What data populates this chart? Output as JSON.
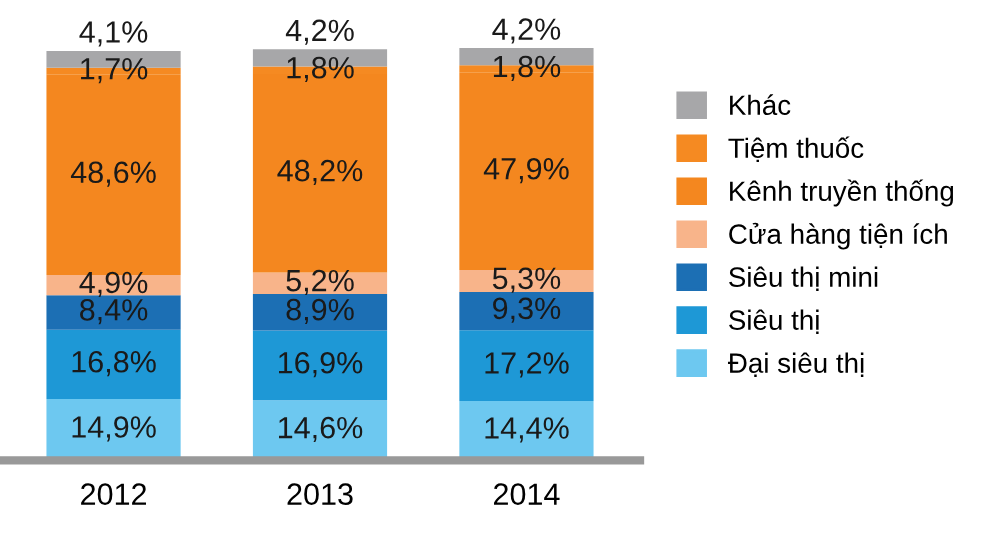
{
  "chart_data": {
    "type": "bar",
    "stacked": true,
    "categories": [
      "2012",
      "2013",
      "2014"
    ],
    "legend": "right",
    "grid": false,
    "series": [
      {
        "name": "Đại siêu thị",
        "color": "#6dc8f0",
        "values": [
          14.9,
          14.6,
          14.4
        ],
        "value_labels": [
          "14,9%",
          "14,6%",
          "14,4%"
        ]
      },
      {
        "name": "Siêu thị",
        "color": "#1e98d6",
        "values": [
          16.8,
          16.9,
          17.2
        ],
        "value_labels": [
          "16,8%",
          "16,9%",
          "17,2%"
        ]
      },
      {
        "name": "Siêu thị mini",
        "color": "#1c6fb4",
        "values": [
          8.4,
          8.9,
          9.3
        ],
        "value_labels": [
          "8,4%",
          "8,9%",
          "9,3%"
        ]
      },
      {
        "name": "Cửa hàng tiện ích",
        "color": "#f8b48a",
        "values": [
          4.9,
          5.2,
          5.3
        ],
        "value_labels": [
          "4,9%",
          "5,2%",
          "5,3%"
        ]
      },
      {
        "name": "Kênh truyền thống",
        "color": "#f4871f",
        "values": [
          48.6,
          48.2,
          47.9
        ],
        "value_labels": [
          "48,6%",
          "48,2%",
          "47,9%"
        ]
      },
      {
        "name": "Tiệm thuốc",
        "color": "#f58a22",
        "values": [
          1.7,
          1.8,
          1.8
        ],
        "value_labels": [
          "1,7%",
          "1,8%",
          "1,8%"
        ]
      },
      {
        "name": "Khác",
        "color": "#a7a7a9",
        "values": [
          4.1,
          4.2,
          4.2
        ],
        "value_labels": [
          "4,1%",
          "4,2%",
          "4,2%"
        ]
      }
    ]
  }
}
